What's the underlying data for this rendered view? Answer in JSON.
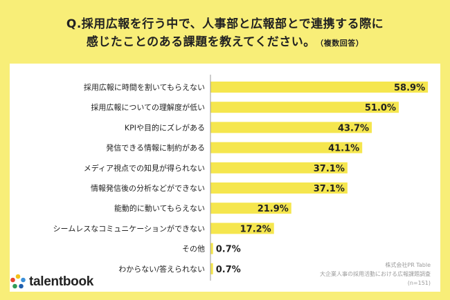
{
  "title": {
    "line1": "Q.採用広報を行う中で、人事部と広報部とで連携する際に",
    "line2": "感じたことのある課題を教えてください。",
    "note": "（複数回答）"
  },
  "source": {
    "company": "株式会社PR Table",
    "survey": "大企業人事の採用活動における広報課題調査",
    "sample": "(n=151)"
  },
  "logo": {
    "text": "talentbook"
  },
  "colors": {
    "background": "#f8ee78",
    "bar": "#f5e64e",
    "panel": "#ffffff",
    "axis": "#999999"
  },
  "chart_data": {
    "type": "bar",
    "orientation": "horizontal",
    "unit": "%",
    "xlim": [
      0,
      60
    ],
    "categories": [
      "採用広報に時間を割いてもらえない",
      "採用広報についての理解度が低い",
      "KPIや目的にズレがある",
      "発信できる情報に制約がある",
      "メディア視点での知見が得られない",
      "情報発信後の分析などができない",
      "能動的に動いてもらえない",
      "シームレスなコミュニケーションができない",
      "その他",
      "わからない/答えられない"
    ],
    "values": [
      58.9,
      51.0,
      43.7,
      41.1,
      37.1,
      37.1,
      21.9,
      17.2,
      0.7,
      0.7
    ],
    "value_labels": [
      "58.9%",
      "51.0%",
      "43.7%",
      "41.1%",
      "37.1%",
      "37.1%",
      "21.9%",
      "17.2%",
      "0.7%",
      "0.7%"
    ]
  }
}
